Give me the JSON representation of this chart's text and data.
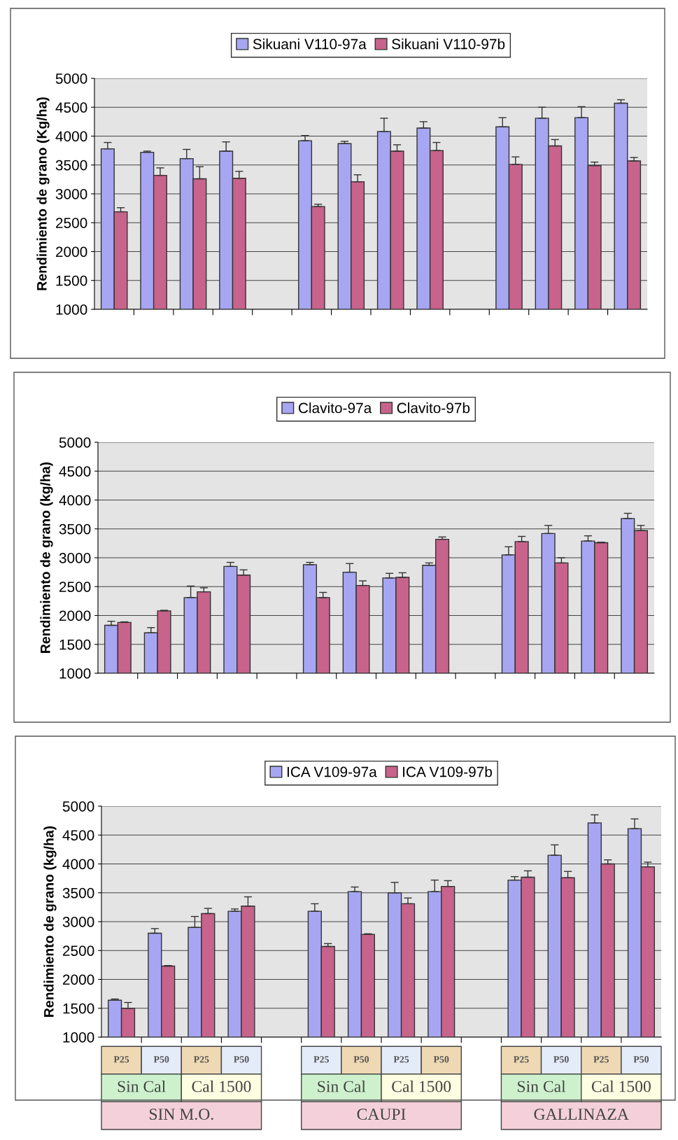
{
  "chart_data": [
    {
      "type": "bar",
      "ylabel": "Rendimiento de grano (Kg/ha)",
      "categories": [
        null,
        null,
        null,
        null,
        null,
        null,
        null,
        null,
        null,
        null,
        null,
        null,
        null,
        null
      ],
      "ylim": [
        1000,
        5000
      ],
      "yticks": [
        1000,
        1500,
        2000,
        2500,
        3000,
        3500,
        4000,
        4500,
        5000
      ],
      "grid": "y",
      "legend": "top",
      "tick_labels": "y",
      "series": [
        {
          "name": "Sikuani V110-97a",
          "color": "#a6a6f2",
          "values": [
            3780,
            3720,
            3610,
            3740,
            null,
            3920,
            3870,
            4080,
            4140,
            null,
            4160,
            4310,
            4320,
            4570
          ],
          "errors": [
            [
              3780,
              3890
            ],
            [
              3720,
              3740
            ],
            [
              3610,
              3770
            ],
            [
              3740,
              3900
            ],
            null,
            [
              3920,
              4010
            ],
            [
              3870,
              3910
            ],
            [
              4080,
              4310
            ],
            [
              4140,
              4250
            ],
            null,
            [
              4160,
              4320
            ],
            [
              4310,
              4500
            ],
            [
              4320,
              4510
            ],
            [
              4570,
              4630
            ]
          ]
        },
        {
          "name": "Sikuani V110-97b",
          "color": "#c8648c",
          "values": [
            2690,
            3320,
            3260,
            3270,
            null,
            2780,
            3210,
            3740,
            3750,
            null,
            3510,
            3830,
            3490,
            3570
          ],
          "errors": [
            [
              2690,
              2760
            ],
            [
              3320,
              3450
            ],
            [
              3260,
              3470
            ],
            [
              3270,
              3390
            ],
            null,
            [
              2780,
              2820
            ],
            [
              3210,
              3330
            ],
            [
              3740,
              3850
            ],
            [
              3750,
              3890
            ],
            null,
            [
              3510,
              3640
            ],
            [
              3830,
              3940
            ],
            [
              3490,
              3550
            ],
            [
              3570,
              3630
            ]
          ]
        }
      ]
    },
    {
      "type": "bar",
      "ylabel": "Rendimiento de grano (kg/ha)",
      "categories": [
        null,
        null,
        null,
        null,
        null,
        null,
        null,
        null,
        null,
        null,
        null,
        null,
        null,
        null
      ],
      "ylim": [
        1000,
        5000
      ],
      "yticks": [
        1000,
        1500,
        2000,
        2500,
        3000,
        3500,
        4000,
        4500,
        5000
      ],
      "grid": "y",
      "legend": "top",
      "tick_labels": "y",
      "series": [
        {
          "name": "Clavito-97a",
          "color": "#a6a6f2",
          "values": [
            1830,
            1700,
            2310,
            2850,
            null,
            2880,
            2750,
            2650,
            2870,
            null,
            3050,
            3420,
            3290,
            3680
          ],
          "errors": [
            [
              1830,
              1900
            ],
            [
              1700,
              1790
            ],
            [
              2310,
              2510
            ],
            [
              2850,
              2920
            ],
            null,
            [
              2880,
              2920
            ],
            [
              2750,
              2900
            ],
            [
              2650,
              2730
            ],
            [
              2870,
              2910
            ],
            null,
            [
              3050,
              3190
            ],
            [
              3420,
              3560
            ],
            [
              3290,
              3380
            ],
            [
              3680,
              3770
            ]
          ]
        },
        {
          "name": "Clavito-97b",
          "color": "#c8648c",
          "values": [
            1880,
            2080,
            2410,
            2700,
            null,
            2310,
            2520,
            2660,
            3320,
            null,
            3280,
            2910,
            3260,
            3470
          ],
          "errors": [
            [
              1880,
              1890
            ],
            [
              2080,
              2090
            ],
            [
              2410,
              2480
            ],
            [
              2700,
              2790
            ],
            null,
            [
              2310,
              2400
            ],
            [
              2520,
              2600
            ],
            [
              2660,
              2740
            ],
            [
              3320,
              3360
            ],
            null,
            [
              3280,
              3370
            ],
            [
              2910,
              3000
            ],
            [
              3260,
              3270
            ],
            [
              3470,
              3560
            ]
          ]
        }
      ]
    },
    {
      "type": "bar",
      "ylabel": "Rendimiento de grano (kg/ha)",
      "categories": [
        "P25",
        "P50",
        "P25",
        "P50",
        null,
        "P25",
        "P50",
        "P25",
        "P50",
        null,
        "P25",
        "P50",
        "P25",
        "P50"
      ],
      "ylim": [
        1000,
        5000
      ],
      "yticks": [
        1000,
        1500,
        2000,
        2500,
        3000,
        3500,
        4000,
        4500,
        5000
      ],
      "grid": "y",
      "legend": "top",
      "annotations": [
        "Sin Cal",
        "Cal 1500",
        "SIN M.O.",
        "Sin Cal",
        "Cal 1500",
        "CAUPI",
        "Sin Cal",
        "Cal 1500",
        "GALLINAZA"
      ],
      "series": [
        {
          "name": "ICA V109-97a",
          "color": "#a6a6f2",
          "values": [
            1640,
            2800,
            2900,
            3180,
            null,
            3180,
            3520,
            3500,
            3520,
            null,
            3720,
            4150,
            4710,
            4610
          ],
          "errors": [
            [
              1640,
              1660
            ],
            [
              2800,
              2880
            ],
            [
              2900,
              3090
            ],
            [
              3180,
              3220
            ],
            null,
            [
              3180,
              3310
            ],
            [
              3520,
              3600
            ],
            [
              3500,
              3680
            ],
            [
              3520,
              3720
            ],
            null,
            [
              3720,
              3780
            ],
            [
              4150,
              4330
            ],
            [
              4710,
              4850
            ],
            [
              4610,
              4780
            ]
          ]
        },
        {
          "name": "ICA V109-97b",
          "color": "#c8648c",
          "values": [
            1500,
            2230,
            3140,
            3270,
            null,
            2570,
            2780,
            3310,
            3610,
            null,
            3770,
            3760,
            4000,
            3950
          ],
          "errors": [
            [
              1500,
              1600
            ],
            [
              2230,
              2240
            ],
            [
              3140,
              3230
            ],
            [
              3270,
              3430
            ],
            null,
            [
              2570,
              2620
            ],
            [
              2780,
              2790
            ],
            [
              3310,
              3410
            ],
            [
              3610,
              3710
            ],
            null,
            [
              3770,
              3880
            ],
            [
              3760,
              3870
            ],
            [
              4000,
              4070
            ],
            [
              3950,
              4030
            ]
          ]
        }
      ]
    }
  ]
}
